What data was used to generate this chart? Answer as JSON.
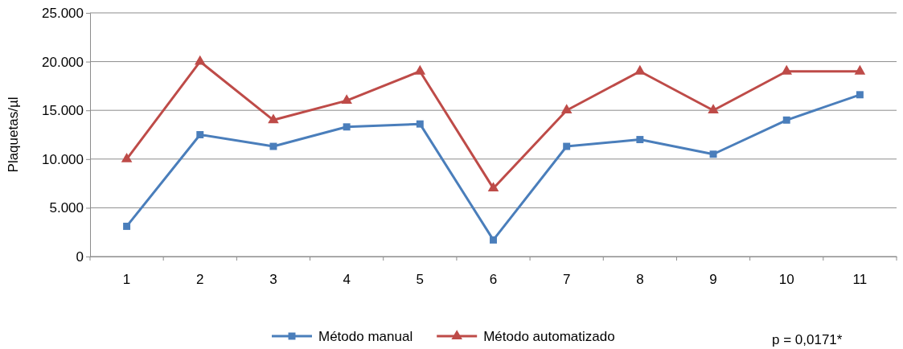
{
  "chart_data": {
    "type": "line",
    "ylabel": "Plaquetas/µl",
    "categories": [
      "1",
      "2",
      "3",
      "4",
      "5",
      "6",
      "7",
      "8",
      "9",
      "10",
      "11"
    ],
    "series": [
      {
        "name": "Método manual",
        "color": "#4a7ebb",
        "marker": "square",
        "values": [
          3100,
          12500,
          11300,
          13300,
          13600,
          1700,
          11300,
          12000,
          10500,
          14000,
          16600
        ]
      },
      {
        "name": "Método automatizado",
        "color": "#be4b48",
        "marker": "triangle",
        "values": [
          10000,
          20000,
          14000,
          16000,
          19000,
          7000,
          15000,
          19000,
          15000,
          19000,
          19000
        ]
      }
    ],
    "ylim": [
      0,
      25000
    ],
    "yticks": [
      0,
      {
        "value": 5000,
        "label": "5.000"
      },
      {
        "value": 10000,
        "label": "10.000"
      },
      {
        "value": 15000,
        "label": "15.000"
      },
      {
        "value": 20000,
        "label": "20.000"
      },
      {
        "value": 25000,
        "label": "25.000"
      }
    ],
    "grid": "y",
    "legend": "bottom",
    "line_style": "solid",
    "annotations": [
      "p = 0,0171*"
    ]
  }
}
